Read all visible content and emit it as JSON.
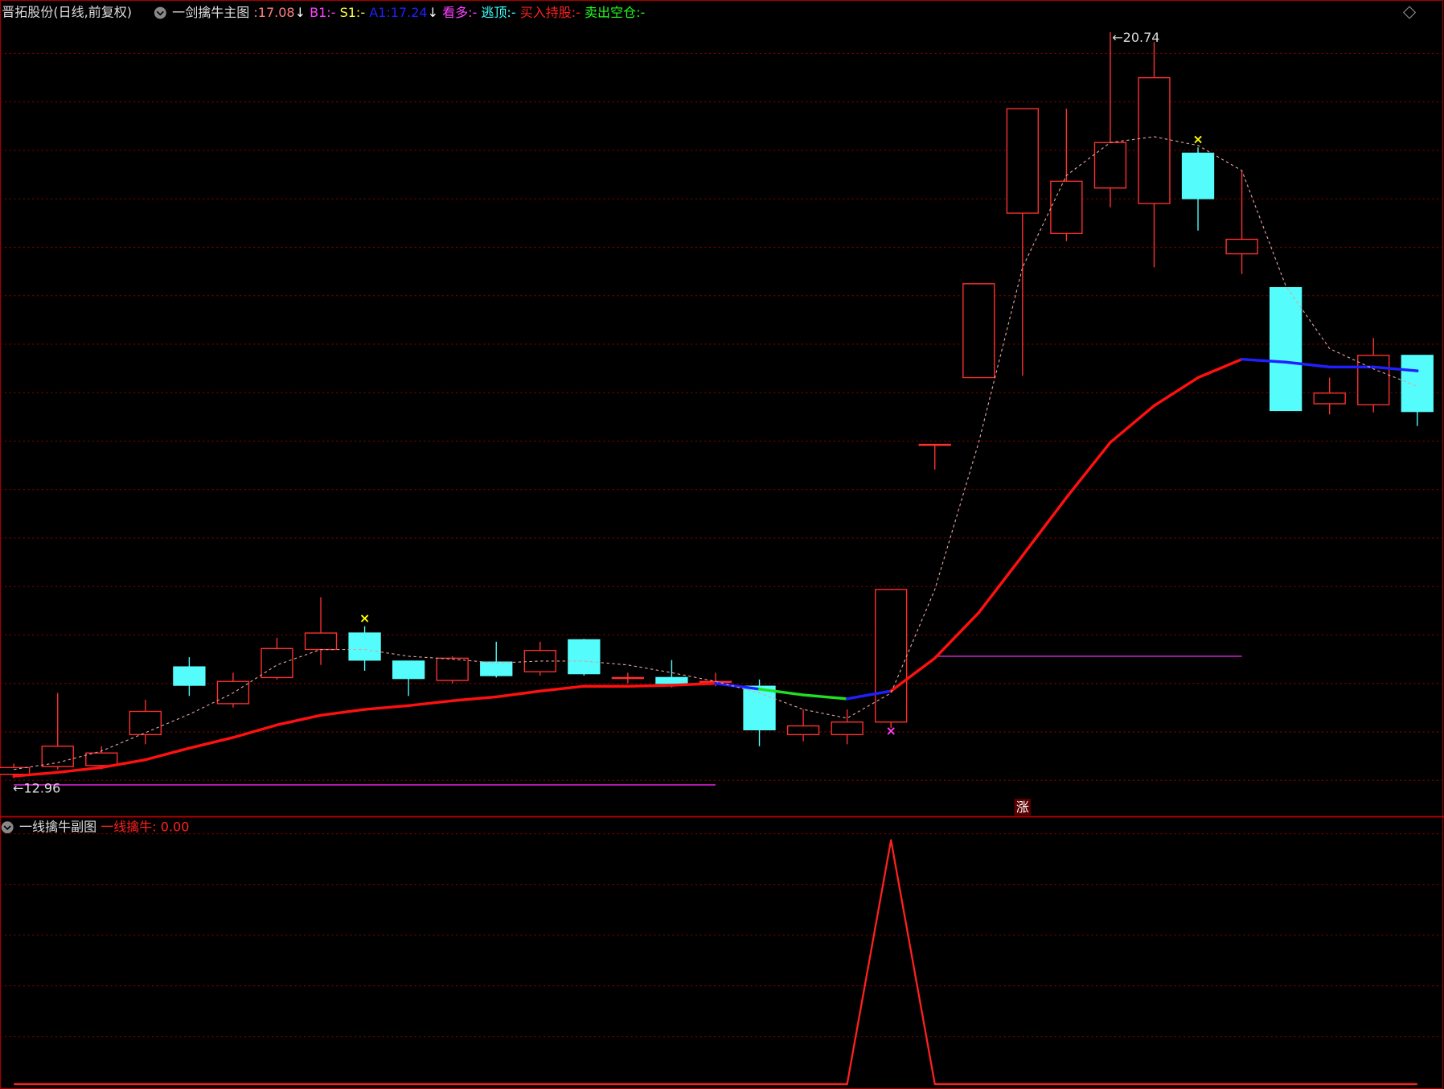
{
  "chart_data": [
    {
      "type": "candlestick",
      "title": "晋拓股份(日线,前复权)",
      "legend": [
        {
          "text": "一剑擒牛主图",
          "color": "#dddddd"
        },
        {
          "text": " :17.08",
          "color": "#ff8080"
        },
        {
          "text": "↓",
          "color": "#ffffff"
        },
        {
          "text": " B1:-",
          "color": "#ff40ff"
        },
        {
          "text": " S1:-",
          "color": "#ffff40"
        },
        {
          "text": " A1:17.24",
          "color": "#2020ff"
        },
        {
          "text": "↓",
          "color": "#ffffff"
        },
        {
          "text": " 看多:-",
          "color": "#ff40ff"
        },
        {
          "text": " 逃顶:-",
          "color": "#40ffff"
        },
        {
          "text": " 买入持股:-",
          "color": "#ff2020"
        },
        {
          "text": " 卖出空仓:-",
          "color": "#20ff20"
        }
      ],
      "open": [
        13.07,
        13.15,
        13.16,
        13.48,
        14.18,
        13.8,
        14.07,
        14.36,
        14.53,
        14.24,
        14.04,
        14.23,
        14.13,
        14.46,
        14.06,
        14.07,
        14.02,
        13.98,
        13.48,
        13.48,
        13.61,
        16.48,
        17.17,
        18.87,
        18.66,
        19.13,
        18.97,
        19.49,
        18.45,
        18.1,
        16.9,
        16.89,
        17.4
      ],
      "high": [
        13.18,
        13.91,
        13.36,
        13.84,
        14.28,
        14.12,
        14.48,
        14.9,
        14.6,
        14.24,
        14.29,
        14.44,
        14.44,
        14.47,
        14.12,
        14.25,
        14.12,
        14.05,
        13.74,
        13.74,
        14.98,
        16.48,
        18.14,
        19.95,
        19.95,
        20.74,
        20.64,
        19.55,
        19.31,
        18.1,
        17.17,
        17.58,
        17.4
      ],
      "low": [
        13.03,
        13.12,
        13.12,
        13.38,
        13.88,
        13.76,
        14.05,
        14.2,
        14.14,
        13.88,
        14.01,
        14.07,
        14.09,
        14.09,
        14.01,
        13.97,
        13.98,
        13.36,
        13.41,
        13.38,
        13.55,
        16.22,
        17.17,
        17.19,
        18.58,
        18.93,
        18.31,
        18.69,
        18.24,
        16.83,
        16.79,
        16.81,
        16.67
      ],
      "close": [
        13.14,
        13.36,
        13.29,
        13.72,
        13.99,
        14.03,
        14.37,
        14.53,
        14.25,
        14.06,
        14.27,
        14.09,
        14.35,
        14.11,
        14.07,
        14.01,
        14.03,
        13.53,
        13.57,
        13.61,
        14.98,
        16.48,
        18.14,
        19.95,
        19.2,
        19.6,
        20.27,
        19.02,
        18.6,
        16.83,
        17.01,
        17.4,
        16.82
      ],
      "up_color": "#ff3030",
      "down_color": "#54fcfc",
      "series": [
        {
          "color": "#ff1010",
          "width": 3,
          "values": [
            13.05,
            13.09,
            13.14,
            13.22,
            13.34,
            13.45,
            13.58,
            13.68,
            13.74,
            13.78,
            13.83,
            13.87,
            13.93,
            13.98,
            13.98,
            13.99,
            14.01,
            13.95,
            13.89,
            13.85,
            13.93,
            14.27,
            14.74,
            15.33,
            15.93,
            16.5,
            16.88,
            17.17,
            17.36,
            17.33,
            17.28,
            17.28,
            17.24
          ],
          "segment_colors": [
            "#ff1010",
            "#ff1010",
            "#ff1010",
            "#ff1010",
            "#ff1010",
            "#ff1010",
            "#ff1010",
            "#ff1010",
            "#ff1010",
            "#ff1010",
            "#ff1010",
            "#ff1010",
            "#ff1010",
            "#ff1010",
            "#ff1010",
            "#ff1010",
            "#2020ff",
            "#20e020",
            "#20e020",
            "#2020ff",
            "#ff1010",
            "#ff1010",
            "#ff1010",
            "#ff1010",
            "#ff1010",
            "#ff1010",
            "#ff1010",
            "#ff1010",
            "#2020ff",
            "#2020ff",
            "#2020ff",
            "#2020ff",
            "#2020ff"
          ]
        },
        {
          "color": "#e0a0a0",
          "width": 1,
          "dashed": true,
          "values": [
            13.12,
            13.19,
            13.31,
            13.5,
            13.69,
            13.91,
            14.2,
            14.36,
            14.36,
            14.29,
            14.26,
            14.22,
            14.24,
            14.24,
            14.2,
            14.12,
            14.03,
            13.91,
            13.74,
            13.65,
            13.91,
            14.98,
            16.5,
            18.31,
            19.26,
            19.6,
            19.66,
            19.57,
            19.31,
            18.12,
            17.47,
            17.26,
            17.08
          ]
        }
      ],
      "support_lines": [
        {
          "value": 12.96,
          "from": 0,
          "to": 16,
          "color": "#c020c0"
        },
        {
          "value": 14.29,
          "from": 21,
          "to": 28,
          "color": "#c020c0"
        }
      ],
      "markers": [
        {
          "index": 8,
          "symbol": "×",
          "color": "#ffff00",
          "at": "high"
        },
        {
          "index": 27,
          "symbol": "×",
          "color": "#ffff00",
          "at": "high"
        },
        {
          "index": 20,
          "symbol": "×",
          "color": "#ff40ff",
          "at": "low"
        }
      ],
      "high_label": {
        "arrow": "←",
        "index": 25
      },
      "low_label": {
        "arrow": "←"
      },
      "annotations": [
        {
          "text": "涨",
          "index": 23
        }
      ],
      "ylim": [
        12.65,
        20.84
      ],
      "grid": true
    },
    {
      "type": "line",
      "legend": [
        {
          "text": "一线擒牛副图",
          "color": "#dddddd"
        },
        {
          "text": " 一线擒牛: 0.00",
          "color": "#ff2020"
        }
      ],
      "series": [
        {
          "color": "#ff2020",
          "width": 2,
          "values": [
            0,
            0,
            0,
            0,
            0,
            0,
            0,
            0,
            0,
            0,
            0,
            0,
            0,
            0,
            0,
            0,
            0,
            0,
            0,
            0,
            1,
            0,
            0,
            0,
            0,
            0,
            0,
            0,
            0,
            0,
            0,
            0,
            0
          ]
        }
      ],
      "ylim": [
        -0.02,
        1.09
      ],
      "grid": true
    }
  ]
}
